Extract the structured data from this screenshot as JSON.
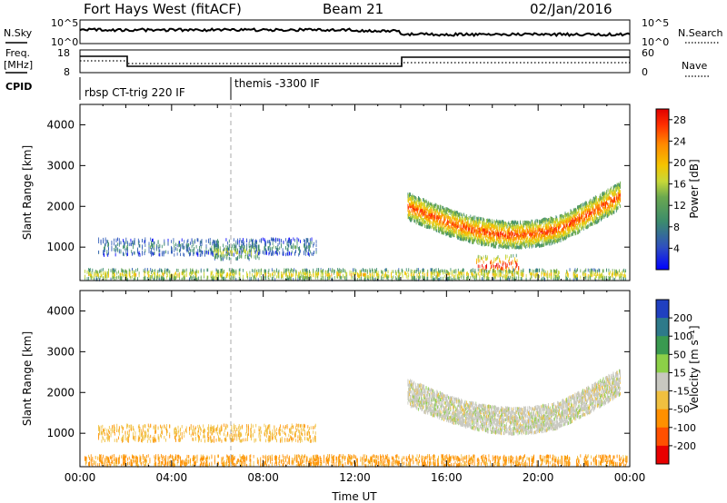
{
  "header": {
    "title": "Fort Hays West (fitACF)",
    "beam": "Beam 21",
    "date": "02/Jan/2016"
  },
  "noise_panel": {
    "left_label": "N.Sky",
    "left_ticks": [
      "10^5",
      "10^0"
    ],
    "right_label": "N.Search",
    "right_ticks": [
      "10^5",
      "10^0"
    ]
  },
  "freq_panel": {
    "left_label_1": "Freq.",
    "left_label_2": "[MHz]",
    "left_ticks": [
      "18",
      "8"
    ],
    "right_label": "Nave",
    "right_ticks": [
      "60",
      "0"
    ],
    "cpid_label": "CPID",
    "cpid_entries": [
      "rbsp CT-trig 220 IF",
      "themis -3300 IF"
    ]
  },
  "chart_data": [
    {
      "type": "heatmap",
      "panel": "power",
      "ylabel": "Slant Range [km]",
      "xlabel": "",
      "x_unit": "hours UT",
      "xlim": [
        0,
        24
      ],
      "ylim": [
        180,
        4500
      ],
      "yticks": [
        "1000",
        "2000",
        "3000",
        "4000"
      ],
      "colorbar": {
        "label": "Power [dB]",
        "ticks": [
          "28",
          "24",
          "20",
          "16",
          "12",
          "8",
          "4"
        ],
        "range": [
          0,
          30
        ],
        "colors": [
          "#0000ff",
          "#2f5bb8",
          "#3c8c6c",
          "#6aa84f",
          "#c8d838",
          "#f4c400",
          "#ff8a00",
          "#ff3000",
          "#e80000"
        ]
      },
      "features": [
        {
          "name": "echo band",
          "time": [
            0.8,
            10.3
          ],
          "range_km": [
            800,
            1200
          ],
          "power_db": 6
        },
        {
          "name": "echo band",
          "time": [
            5.8,
            7.8
          ],
          "range_km": [
            700,
            1050
          ],
          "power_db": 13
        },
        {
          "name": "echo band",
          "time": [
            14.3,
            23.6
          ],
          "range_km": [
            900,
            2300
          ],
          "power_db": 22
        },
        {
          "name": "echo band",
          "time": [
            17.3,
            19.2
          ],
          "range_km": [
            300,
            800
          ],
          "power_db": 25
        },
        {
          "name": "near-range scatter",
          "time": [
            0.2,
            23.9
          ],
          "range_km": [
            200,
            450
          ],
          "power_db": 16
        }
      ]
    },
    {
      "type": "heatmap",
      "panel": "velocity",
      "ylabel": "Slant Range [km]",
      "xlabel": "Time UT",
      "x_unit": "hours UT",
      "xlim": [
        0,
        24
      ],
      "ylim": [
        180,
        4500
      ],
      "yticks": [
        "1000",
        "2000",
        "3000",
        "4000"
      ],
      "xticks": [
        "00:00",
        "04:00",
        "08:00",
        "12:00",
        "16:00",
        "20:00",
        "00:00"
      ],
      "colorbar": {
        "label": "Velocity [m s⁻¹]",
        "ticks": [
          "200",
          "100",
          "50",
          "15",
          "-15",
          "-50",
          "-100",
          "-200"
        ],
        "colors": [
          "#2040c0",
          "#2e7a8a",
          "#3a9a50",
          "#8cd048",
          "#c8c8c0",
          "#f0c040",
          "#ff9000",
          "#ff5000",
          "#e80000"
        ]
      },
      "features": [
        {
          "name": "echo band",
          "time": [
            0.8,
            10.3
          ],
          "range_km": [
            800,
            1200
          ],
          "velocity_ms": -40
        },
        {
          "name": "echo band",
          "time": [
            14.3,
            23.6
          ],
          "range_km": [
            900,
            2300
          ],
          "velocity_ms": 0
        },
        {
          "name": "near-range scatter",
          "time": [
            0.2,
            23.9
          ],
          "range_km": [
            200,
            450
          ],
          "velocity_ms": -60
        }
      ]
    }
  ]
}
